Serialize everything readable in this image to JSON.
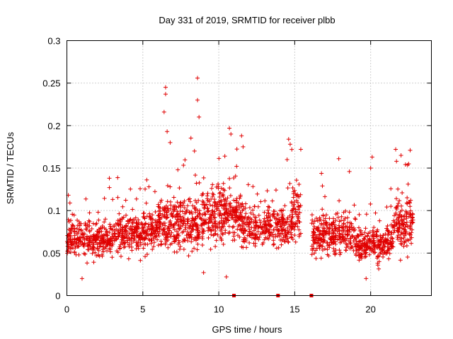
{
  "chart_data": {
    "type": "scatter",
    "title": "Day 331 of 2019, SRMTID for receiver plbb",
    "xlabel": "GPS time / hours",
    "ylabel": "SRMTID / TECUs",
    "xlim": [
      0,
      24
    ],
    "ylim": [
      0,
      0.3
    ],
    "x_ticks": [
      0,
      5,
      10,
      15,
      20
    ],
    "x_tick_labels": [
      "0",
      "5",
      "10",
      "15",
      "20"
    ],
    "y_ticks": [
      0,
      0.05,
      0.1,
      0.15,
      0.2,
      0.25,
      0.3
    ],
    "y_tick_labels": [
      "0",
      "0.05",
      "0.1",
      "0.15",
      "0.2",
      "0.25",
      "0.3"
    ],
    "grid": true,
    "marker": "+",
    "color": "#e00000",
    "gap_markers_x": [
      11.0,
      13.9,
      16.1
    ],
    "series": [
      {
        "name": "SRMTID",
        "segments": [
          {
            "x_start": 0.0,
            "x_end": 3.0,
            "base": 0.068,
            "spread": 0.022,
            "count": 300
          },
          {
            "x_start": 3.0,
            "x_end": 6.0,
            "base": 0.075,
            "spread": 0.022,
            "count": 300
          },
          {
            "x_start": 6.0,
            "x_end": 9.0,
            "base": 0.085,
            "spread": 0.03,
            "count": 330
          },
          {
            "x_start": 9.0,
            "x_end": 11.5,
            "base": 0.095,
            "spread": 0.03,
            "count": 280
          },
          {
            "x_start": 11.5,
            "x_end": 14.8,
            "base": 0.08,
            "spread": 0.022,
            "count": 300
          },
          {
            "x_start": 14.8,
            "x_end": 15.4,
            "base": 0.095,
            "spread": 0.03,
            "count": 70
          },
          {
            "x_start": 16.1,
            "x_end": 19.0,
            "base": 0.072,
            "spread": 0.022,
            "count": 280
          },
          {
            "x_start": 19.0,
            "x_end": 21.5,
            "base": 0.062,
            "spread": 0.02,
            "count": 250
          },
          {
            "x_start": 21.5,
            "x_end": 22.8,
            "base": 0.085,
            "spread": 0.03,
            "count": 140
          }
        ],
        "peaks": [
          {
            "x": 6.5,
            "y": 0.245
          },
          {
            "x": 6.5,
            "y": 0.237
          },
          {
            "x": 6.4,
            "y": 0.216
          },
          {
            "x": 6.6,
            "y": 0.193
          },
          {
            "x": 6.8,
            "y": 0.18
          },
          {
            "x": 8.6,
            "y": 0.256
          },
          {
            "x": 8.6,
            "y": 0.23
          },
          {
            "x": 8.7,
            "y": 0.21
          },
          {
            "x": 8.4,
            "y": 0.17
          },
          {
            "x": 10.7,
            "y": 0.197
          },
          {
            "x": 10.8,
            "y": 0.19
          },
          {
            "x": 11.5,
            "y": 0.188
          },
          {
            "x": 11.6,
            "y": 0.175
          },
          {
            "x": 14.6,
            "y": 0.184
          },
          {
            "x": 14.7,
            "y": 0.178
          },
          {
            "x": 14.5,
            "y": 0.16
          },
          {
            "x": 15.4,
            "y": 0.172
          },
          {
            "x": 17.9,
            "y": 0.161
          },
          {
            "x": 18.6,
            "y": 0.146
          },
          {
            "x": 20.1,
            "y": 0.163
          },
          {
            "x": 20.0,
            "y": 0.15
          },
          {
            "x": 21.7,
            "y": 0.158
          },
          {
            "x": 22.0,
            "y": 0.165
          },
          {
            "x": 22.6,
            "y": 0.171
          },
          {
            "x": 22.5,
            "y": 0.155
          },
          {
            "x": 0.2,
            "y": 0.109
          },
          {
            "x": 2.8,
            "y": 0.127
          },
          {
            "x": 5.4,
            "y": 0.128
          },
          {
            "x": 1.0,
            "y": 0.02
          },
          {
            "x": 9.0,
            "y": 0.027
          },
          {
            "x": 10.5,
            "y": 0.022
          },
          {
            "x": 19.7,
            "y": 0.02
          }
        ]
      }
    ]
  }
}
